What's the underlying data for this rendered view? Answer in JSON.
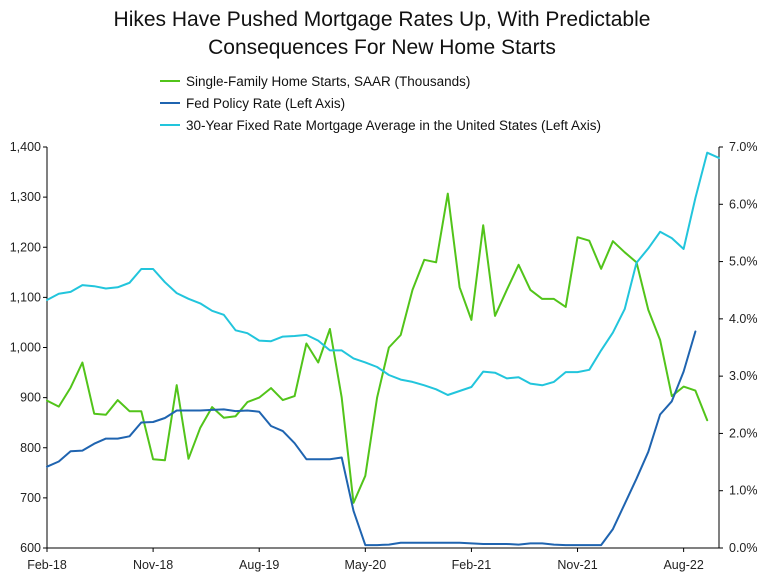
{
  "chart_data": {
    "type": "line",
    "title_line1": "Hikes Have Pushed Mortgage Rates Up, With Predictable",
    "title_line2": "Consequences For New Home Starts",
    "x_tick_labels": [
      "Feb-18",
      "Nov-18",
      "Aug-19",
      "May-20",
      "Feb-21",
      "Nov-21",
      "Aug-22"
    ],
    "left_axis": {
      "min": 600,
      "max": 1400,
      "ticks": [
        "600",
        "700",
        "800",
        "900",
        "1,000",
        "1,100",
        "1,200",
        "1,300",
        "1,400"
      ]
    },
    "right_axis": {
      "min": 0,
      "max": 7,
      "ticks": [
        "0.0%",
        "1.0%",
        "2.0%",
        "3.0%",
        "4.0%",
        "5.0%",
        "6.0%",
        "7.0%"
      ]
    },
    "x_range": [
      0,
      57
    ],
    "series": [
      {
        "name": "Single-Family Home Starts, SAAR (Thousands)",
        "color": "#52c41a",
        "axis": "left",
        "values": [
          894,
          882,
          920,
          970,
          868,
          866,
          895,
          873,
          873,
          777,
          775,
          925,
          778,
          840,
          881,
          860,
          863,
          891,
          900,
          919,
          895,
          903,
          1008,
          970,
          1037,
          900,
          690,
          744,
          900,
          1000,
          1025,
          1115,
          1175,
          1170,
          1307,
          1120,
          1055,
          1244,
          1063,
          1115,
          1165,
          1115,
          1097,
          1097,
          1081,
          1220,
          1213,
          1157,
          1212,
          1190,
          1170,
          1075,
          1015,
          903,
          922,
          914,
          855
        ],
        "x_start": 0
      },
      {
        "name": "Fed Policy Rate (Left Axis)",
        "color": "#1f64b0",
        "axis": "right",
        "values": [
          1.42,
          1.51,
          1.69,
          1.7,
          1.82,
          1.91,
          1.91,
          1.95,
          2.19,
          2.2,
          2.27,
          2.4,
          2.4,
          2.4,
          2.41,
          2.42,
          2.39,
          2.4,
          2.38,
          2.13,
          2.04,
          1.83,
          1.55,
          1.55,
          1.55,
          1.58,
          0.65,
          0.05,
          0.05,
          0.06,
          0.09,
          0.09,
          0.09,
          0.09,
          0.09,
          0.09,
          0.08,
          0.07,
          0.07,
          0.07,
          0.06,
          0.08,
          0.08,
          0.06,
          0.05,
          0.05,
          0.05,
          0.05,
          0.33,
          0.77,
          1.21,
          1.68,
          2.33,
          2.56,
          3.08,
          3.78
        ],
        "x_start": 0
      },
      {
        "name": "30-Year Fixed Rate Mortgage Average in the United States (Left Axis)",
        "color": "#22c5dc",
        "axis": "right",
        "values": [
          4.33,
          4.44,
          4.47,
          4.59,
          4.57,
          4.53,
          4.55,
          4.63,
          4.87,
          4.87,
          4.64,
          4.45,
          4.35,
          4.27,
          4.14,
          4.07,
          3.8,
          3.75,
          3.62,
          3.61,
          3.69,
          3.7,
          3.72,
          3.62,
          3.45,
          3.45,
          3.31,
          3.24,
          3.16,
          3.02,
          2.94,
          2.9,
          2.84,
          2.77,
          2.67,
          2.74,
          2.81,
          3.08,
          3.06,
          2.96,
          2.98,
          2.87,
          2.84,
          2.9,
          3.07,
          3.07,
          3.11,
          3.45,
          3.76,
          4.17,
          4.98,
          5.23,
          5.52,
          5.41,
          5.22,
          6.11,
          6.9,
          6.81
        ],
        "x_start": 0
      }
    ],
    "grid": false,
    "legend_position": "top-left"
  }
}
